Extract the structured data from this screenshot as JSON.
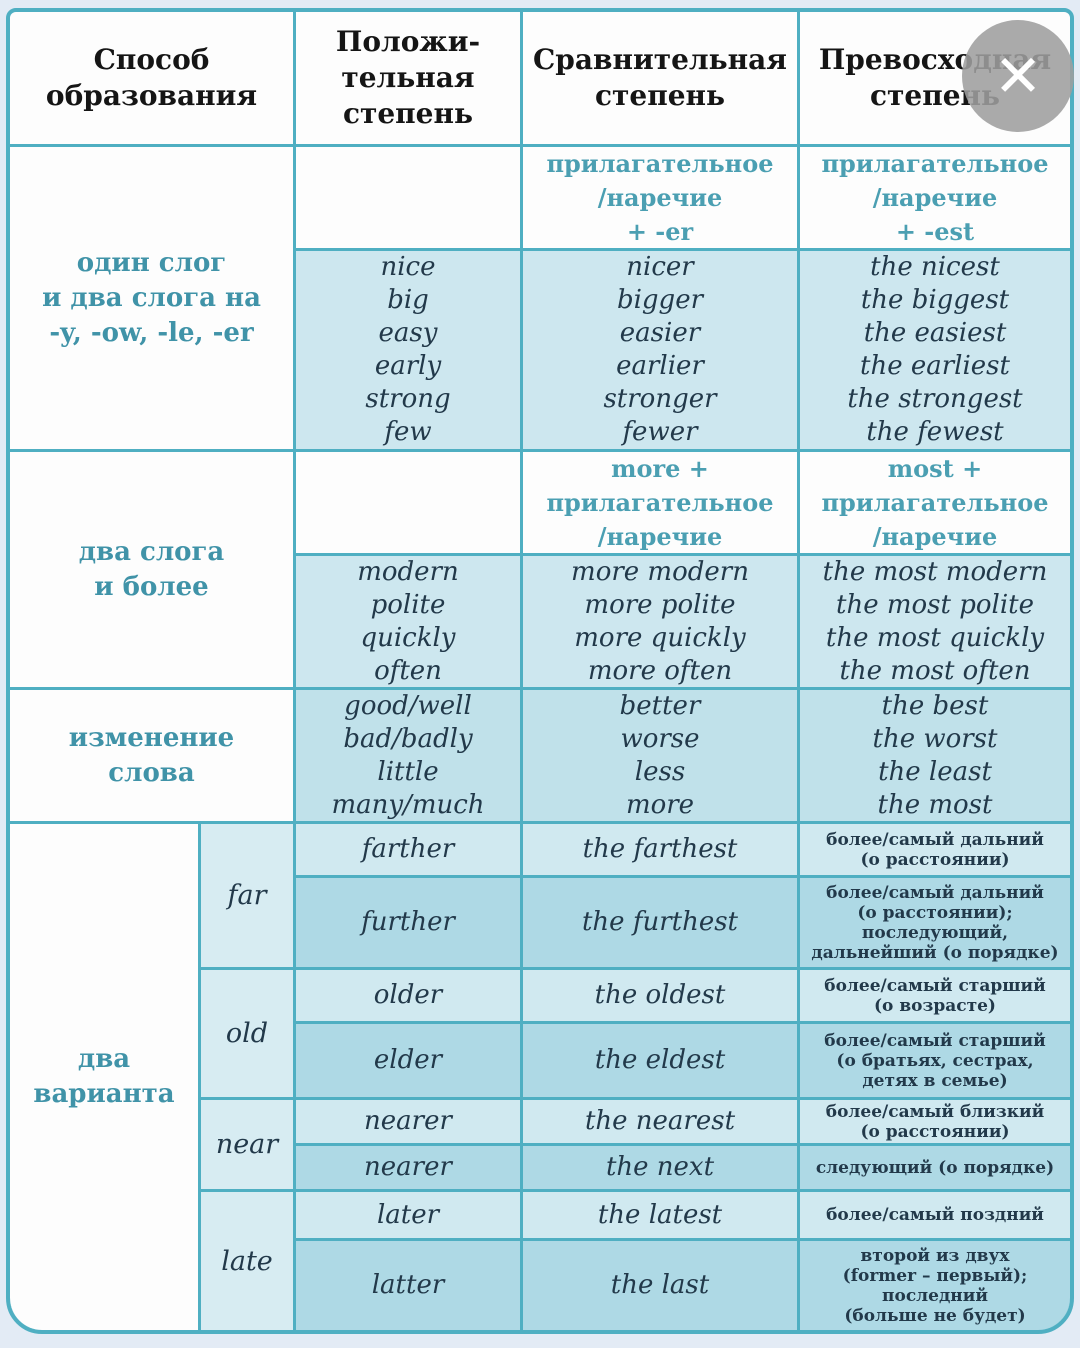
{
  "icons": {
    "close": "✕"
  },
  "header": {
    "method": "Способ\nобразования",
    "positive": "Положи-\nтельная\nстепень",
    "comparative": "Сравнительная\nстепень",
    "superlative": "Превосходная\nстепень"
  },
  "sections": [
    {
      "label": "один слог\nи два слога на\n-y, -ow, -le, -er",
      "comparative_rule": "прилагательное\n/наречие\n+ -er",
      "superlative_rule": "прилагательное\n/наречие\n+ -est",
      "positive": "nice\nbig\neasy\nearly\nstrong\nfew",
      "comparative": "nicer\nbigger\neasier\nearlier\nstronger\nfewer",
      "superlative": "the nicest\nthe biggest\nthe easiest\nthe earliest\nthe strongest\nthe fewest"
    },
    {
      "label": "два слога\nи более",
      "comparative_rule": "more +\nприлагательное\n/наречие",
      "superlative_rule": "most +\nприлагательное\n/наречие",
      "positive": "modern\npolite\nquickly\noften",
      "comparative": "more modern\nmore polite\nmore quickly\nmore often",
      "superlative": "the most modern\nthe most polite\nthe most quickly\nthe most often"
    },
    {
      "label": "изменение\nслова",
      "positive": "good/well\nbad/badly\nlittle\nmany/much",
      "comparative": "better\nworse\nless\nmore",
      "superlative": "the best\nthe worst\nthe least\nthe most"
    }
  ],
  "variants": {
    "label": "два\nварианта",
    "groups": [
      {
        "word": "far",
        "rows": [
          {
            "comparative": "farther",
            "superlative": "the farthest",
            "note": "более/самый дальний\n(о расстоянии)"
          },
          {
            "comparative": "further",
            "superlative": "the furthest",
            "note": "более/самый дальний\n(о расстоянии);\nпоследующий,\nдальнейший (о порядке)"
          }
        ]
      },
      {
        "word": "old",
        "rows": [
          {
            "comparative": "older",
            "superlative": "the oldest",
            "note": "более/самый старший\n(о возрасте)"
          },
          {
            "comparative": "elder",
            "superlative": "the eldest",
            "note": "более/самый  старший\n(о братьях, сестрах,\nдетях в семье)"
          }
        ]
      },
      {
        "word": "near",
        "rows": [
          {
            "comparative": "nearer",
            "superlative": "the nearest",
            "note": "более/самый близкий\n(о расстоянии)"
          },
          {
            "comparative": "nearer",
            "superlative": "the next",
            "note": "следующий (о порядке)"
          }
        ]
      },
      {
        "word": "late",
        "rows": [
          {
            "comparative": "later",
            "superlative": "the latest",
            "note": "более/самый поздний"
          },
          {
            "comparative": "latter",
            "superlative": "the last",
            "note": "второй из двух\n(former – первый);\nпоследний\n(больше не будет)"
          }
        ]
      }
    ]
  }
}
